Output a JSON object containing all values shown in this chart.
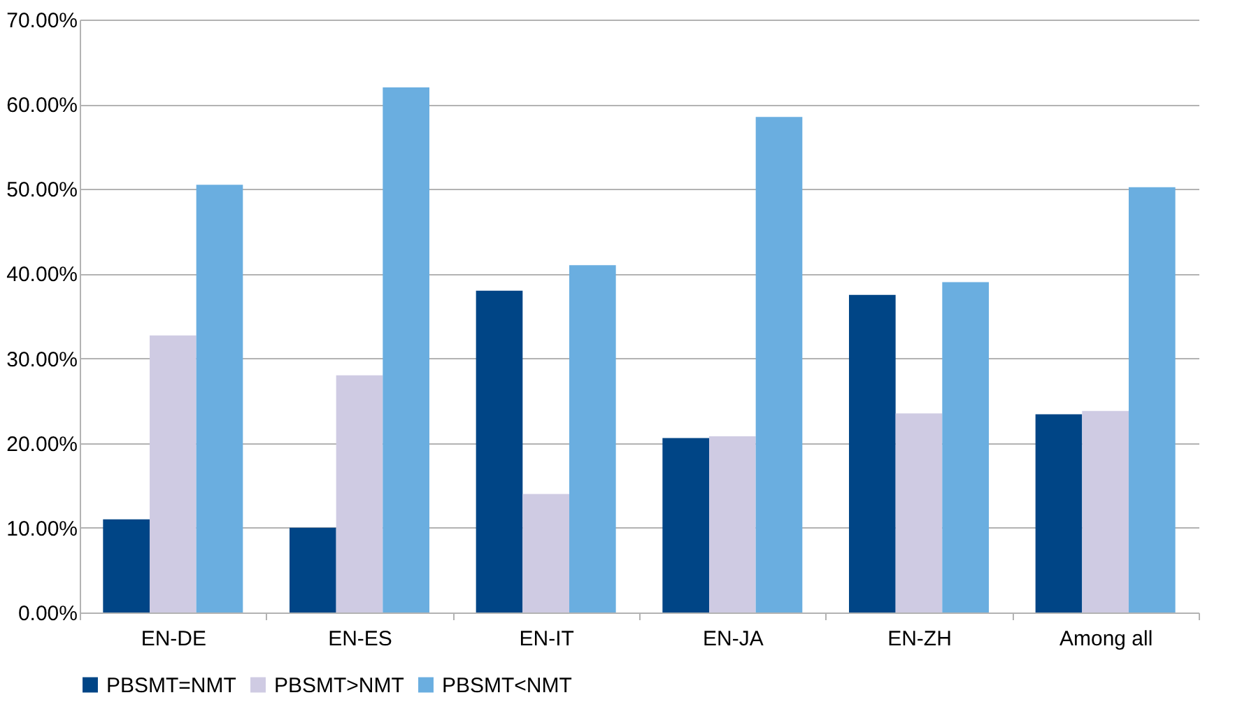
{
  "chart_data": {
    "type": "bar",
    "categories": [
      "EN-DE",
      "EN-ES",
      "EN-IT",
      "EN-JA",
      "EN-ZH",
      "Among all"
    ],
    "series": [
      {
        "name": "PBSMT=NMT",
        "color": "#004586",
        "values": [
          11.0,
          10.0,
          38.0,
          20.6,
          37.5,
          23.4
        ]
      },
      {
        "name": "PBSMT>NMT",
        "color": "#cfcbe3",
        "values": [
          32.7,
          28.0,
          14.0,
          20.8,
          23.5,
          23.8
        ]
      },
      {
        "name": "PBSMT<NMT",
        "color": "#6aaee0",
        "values": [
          50.5,
          62.0,
          41.0,
          58.5,
          39.0,
          50.2
        ]
      }
    ],
    "ylim": [
      0,
      70
    ],
    "yticks": [
      {
        "value": 0,
        "label": "0.00%"
      },
      {
        "value": 10,
        "label": "10.00%"
      },
      {
        "value": 20,
        "label": "20.00%"
      },
      {
        "value": 30,
        "label": "30.00%"
      },
      {
        "value": 40,
        "label": "40.00%"
      },
      {
        "value": 50,
        "label": "50.00%"
      },
      {
        "value": 60,
        "label": "60.00%"
      },
      {
        "value": 70,
        "label": "70.00%"
      }
    ],
    "grid": "y",
    "legend": "bottom"
  }
}
